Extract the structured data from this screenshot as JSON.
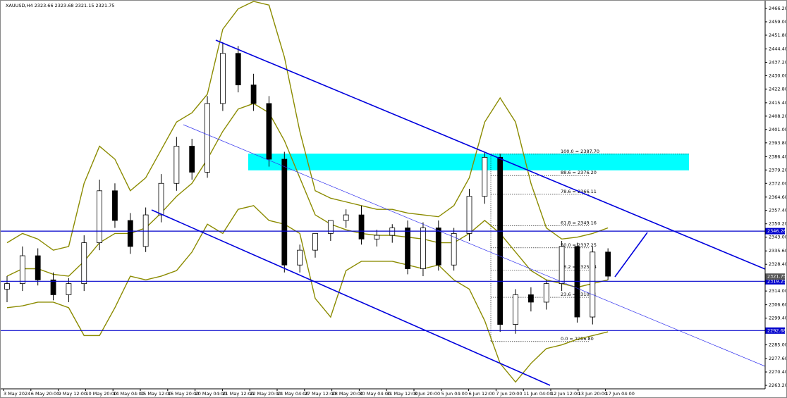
{
  "chart_data": {
    "type": "candlestick",
    "title": "XAUUSD,H4  2323.66 2323.68 2321.15 2321.75",
    "x_labels": [
      "3 May 2024",
      "6 May 20:00",
      "9 May 12:00",
      "10 May 20:00",
      "14 May 04:00",
      "15 May 12:00",
      "16 May 20:00",
      "20 May 04:00",
      "21 May 12:00",
      "22 May 20:00",
      "24 May 04:00",
      "27 May 12:00",
      "28 May 20:00",
      "30 May 04:00",
      "31 May 12:00",
      "3 Jun 20:00",
      "5 Jun 04:00",
      "6 Jun 12:00",
      "7 Jun 20:00",
      "11 Jun 04:00",
      "12 Jun 12:00",
      "13 Jun 20:00",
      "17 Jun 04:00"
    ],
    "ylim": [
      2261.31,
      2470.75
    ],
    "yticks": [
      {
        "value": 2466.2,
        "label": "2466.20"
      },
      {
        "value": 2459.0,
        "label": "2459.00"
      },
      {
        "value": 2451.8,
        "label": "2451.80"
      },
      {
        "value": 2444.4,
        "label": "2444.40"
      },
      {
        "value": 2437.2,
        "label": "2437.20"
      },
      {
        "value": 2430.0,
        "label": "2430.00"
      },
      {
        "value": 2422.8,
        "label": "2422.80"
      },
      {
        "value": 2415.4,
        "label": "2415.40"
      },
      {
        "value": 2408.2,
        "label": "2408.20"
      },
      {
        "value": 2401.0,
        "label": "2401.00"
      },
      {
        "value": 2393.8,
        "label": "2393.80"
      },
      {
        "value": 2386.4,
        "label": "2386.40"
      },
      {
        "value": 2379.2,
        "label": "2379.20"
      },
      {
        "value": 2372.0,
        "label": "2372.00"
      },
      {
        "value": 2364.6,
        "label": "2364.60"
      },
      {
        "value": 2357.4,
        "label": "2357.40"
      },
      {
        "value": 2350.2,
        "label": "2350.20"
      },
      {
        "value": 2343.0,
        "label": "2343.00"
      },
      {
        "value": 2335.6,
        "label": "2335.60"
      },
      {
        "value": 2328.4,
        "label": "2328.40"
      },
      {
        "value": 2314.0,
        "label": "2314.00"
      },
      {
        "value": 2306.6,
        "label": "2306.60"
      },
      {
        "value": 2299.4,
        "label": "2299.40"
      },
      {
        "value": 2285.0,
        "label": "2285.00"
      },
      {
        "value": 2277.6,
        "label": "2277.60"
      },
      {
        "value": 2270.4,
        "label": "2270.40"
      },
      {
        "value": 2263.2,
        "label": "2263.20"
      }
    ],
    "candles": {
      "open": [
        2315,
        2318,
        2333,
        2320,
        2312,
        2318,
        2340,
        2368,
        2352,
        2338,
        2355,
        2372,
        2392,
        2378,
        2415,
        2442,
        2425,
        2415,
        2385,
        2328,
        2336,
        2345,
        2352,
        2355,
        2342,
        2344,
        2348,
        2326,
        2348,
        2328,
        2345,
        2365,
        2386,
        2296,
        2312,
        2308,
        2318,
        2338,
        2300,
        2335
      ],
      "high": [
        2322,
        2338,
        2337,
        2324,
        2321,
        2344,
        2374,
        2372,
        2356,
        2359,
        2377,
        2397,
        2396,
        2419,
        2448,
        2446,
        2431,
        2419,
        2389,
        2339,
        2341,
        2350,
        2358,
        2360,
        2347,
        2350,
        2352,
        2351,
        2352,
        2348,
        2369,
        2389,
        2388,
        2315,
        2316,
        2320,
        2341,
        2340,
        2338,
        2337
      ],
      "low": [
        2308,
        2314,
        2317,
        2309,
        2308,
        2314,
        2336,
        2348,
        2334,
        2335,
        2351,
        2368,
        2374,
        2375,
        2411,
        2421,
        2411,
        2381,
        2324,
        2324,
        2332,
        2341,
        2348,
        2339,
        2338,
        2340,
        2323,
        2322,
        2325,
        2325,
        2341,
        2361,
        2292,
        2291,
        2303,
        2304,
        2314,
        2297,
        2296,
        2320
      ],
      "close": [
        2318,
        2333,
        2320,
        2312,
        2318,
        2340,
        2368,
        2352,
        2338,
        2355,
        2372,
        2392,
        2378,
        2415,
        2442,
        2425,
        2415,
        2385,
        2328,
        2336,
        2345,
        2352,
        2355,
        2342,
        2344,
        2348,
        2326,
        2348,
        2328,
        2345,
        2365,
        2386,
        2296,
        2312,
        2308,
        2318,
        2338,
        2300,
        2335,
        2322
      ]
    },
    "bands": {
      "color": "#8b8b00",
      "upper": [
        2340,
        2345,
        2342,
        2336,
        2338,
        2372,
        2392,
        2385,
        2368,
        2375,
        2390,
        2405,
        2410,
        2420,
        2455,
        2466,
        2470,
        2468,
        2440,
        2400,
        2368,
        2364,
        2362,
        2360,
        2358,
        2358,
        2356,
        2355,
        2354,
        2360,
        2375,
        2405,
        2418,
        2405,
        2372,
        2348,
        2342,
        2343,
        2345,
        2348
      ],
      "middle": [
        2322,
        2326,
        2326,
        2323,
        2322,
        2330,
        2340,
        2345,
        2345,
        2348,
        2356,
        2365,
        2372,
        2385,
        2400,
        2412,
        2415,
        2410,
        2395,
        2375,
        2355,
        2350,
        2347,
        2345,
        2344,
        2344,
        2343,
        2342,
        2340,
        2340,
        2345,
        2352,
        2345,
        2335,
        2325,
        2320,
        2318,
        2316,
        2318,
        2320
      ],
      "lower": [
        2305,
        2306,
        2308,
        2308,
        2305,
        2290,
        2290,
        2305,
        2322,
        2320,
        2322,
        2325,
        2335,
        2350,
        2345,
        2358,
        2360,
        2352,
        2350,
        2345,
        2310,
        2300,
        2325,
        2330,
        2330,
        2330,
        2328,
        2326,
        2328,
        2320,
        2315,
        2298,
        2275,
        2265,
        2275,
        2283,
        2285,
        2288,
        2290,
        2292
      ]
    },
    "levels": [
      {
        "value": 2346.26,
        "label": "2346.26",
        "color": "#0000cc"
      },
      {
        "value": 2319.25,
        "label": "2319.25",
        "color": "#0000cc"
      },
      {
        "value": 2292.68,
        "label": "2292.68",
        "color": "#0000cc"
      }
    ],
    "current_price": {
      "value": 2321.75,
      "label": "2321.75",
      "color": "#555555"
    },
    "zone": [
      2379.0,
      2388.0
    ],
    "zone_color": "#00ffff",
    "fib": [
      {
        "value": 2387.7,
        "label": "100.0 = 2387.70"
      },
      {
        "value": 2376.2,
        "label": "88.6 = 2376.20"
      },
      {
        "value": 2366.11,
        "label": "78.6 = 2366.11"
      },
      {
        "value": 2349.16,
        "label": "61.8 = 2349.16"
      },
      {
        "value": 2337.25,
        "label": "50.0 = 2337.25"
      },
      {
        "value": 2325.34,
        "label": "38.2 = 2325.34"
      },
      {
        "value": 2310.61,
        "label": "23.6 = 2310.61"
      },
      {
        "value": 2286.8,
        "label": "0.0 = 2286.80"
      }
    ]
  }
}
